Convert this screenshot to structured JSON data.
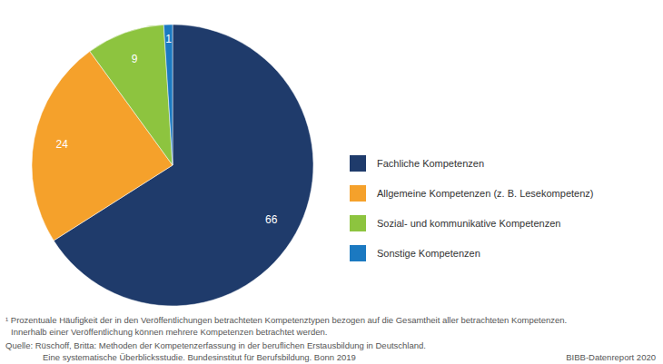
{
  "chart_data": {
    "type": "pie",
    "categories": [
      "Fachliche Kompetenzen",
      "Allgemeine Kompetenzen (z. B. Lesekompetenz)",
      "Sozial- und kommunikative Kompetenzen",
      "Sonstige Kompetenzen"
    ],
    "values": [
      66,
      24,
      9,
      1
    ],
    "colors": [
      "#1f3b6b",
      "#f5a12b",
      "#8dc43f",
      "#1b79c1"
    ],
    "data_labels": true,
    "legend": "right",
    "footnote": [
      "¹ Prozentuale Häufigkeit der in den Veröffentlichungen betrachteten Kompetenztypen bezogen auf die Gesamtheit aller betrachteten Kompetenzen.",
      "Innerhalb einer Veröffentlichung können mehrere Kompetenzen betrachtet werden."
    ],
    "source": [
      "Quelle: Rüschoff, Britta: Methoden der Kompetenzerfassung in der beruflichen Erstausbildung in Deutschland.",
      "Eine systematische Überblicksstudie. Bundesinstitut für Berufsbildung. Bonn 2019"
    ],
    "credit": "BIBB-Datenreport 2020"
  }
}
